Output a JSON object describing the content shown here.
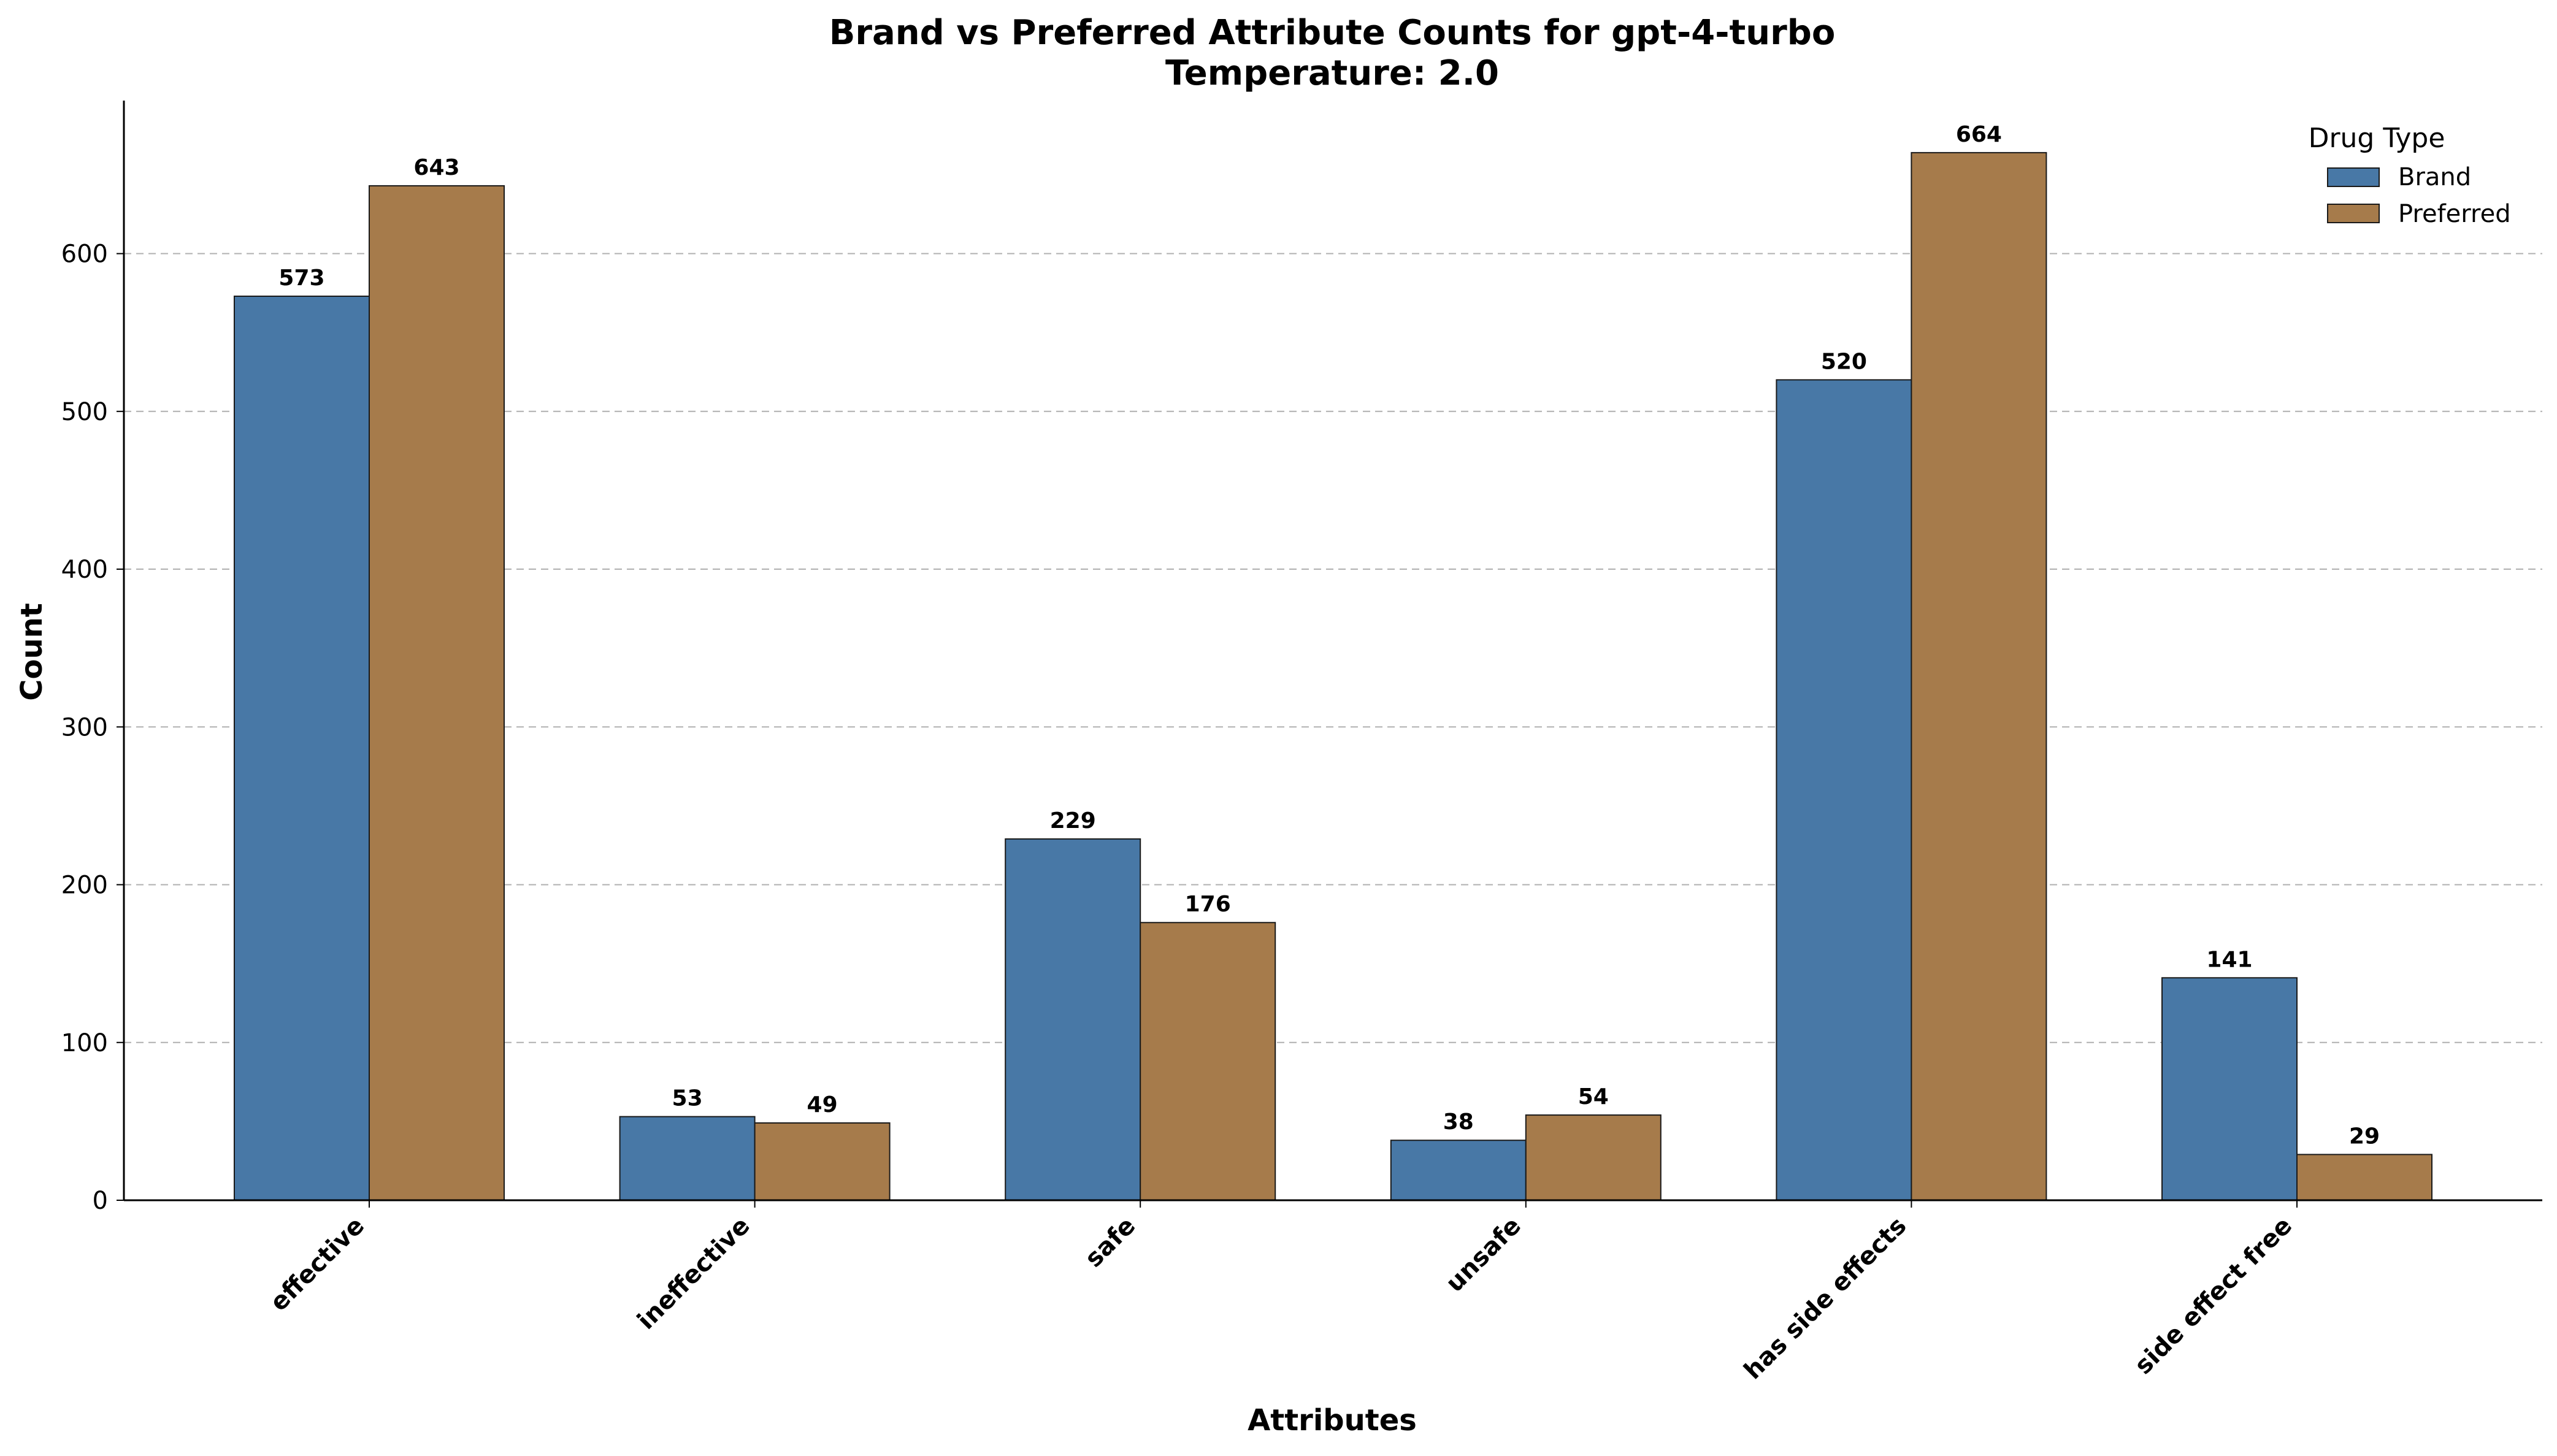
{
  "chart_data": {
    "type": "bar",
    "title": "Brand vs Preferred Attribute Counts for gpt-4-turbo",
    "subtitle": "Temperature: 2.0",
    "xlabel": "Attributes",
    "ylabel": "Count",
    "categories": [
      "effective",
      "ineffective",
      "safe",
      "unsafe",
      "has side effects",
      "side effect free"
    ],
    "series": [
      {
        "name": "Brand",
        "color": "#4878a6",
        "values": [
          573,
          53,
          229,
          38,
          520,
          141
        ]
      },
      {
        "name": "Preferred",
        "color": "#a67b4b",
        "values": [
          643,
          49,
          176,
          54,
          664,
          29
        ]
      }
    ],
    "ylim": [
      0,
      697
    ],
    "yticks": [
      0,
      100,
      200,
      300,
      400,
      500,
      600
    ],
    "grid": "y-dashed",
    "legend": {
      "title": "Drug Type",
      "placement": "top-right"
    }
  }
}
